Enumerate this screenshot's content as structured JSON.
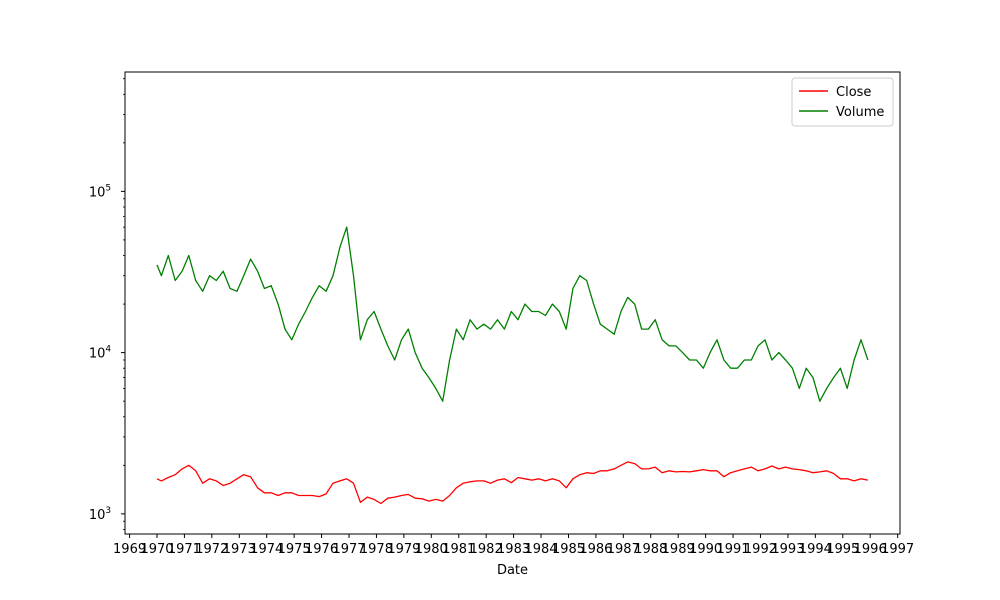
{
  "chart_data": {
    "type": "line",
    "xlabel": "Date",
    "ylabel": "",
    "y_scale": "log",
    "ylim": [
      750,
      550000
    ],
    "xlim": [
      "1968-11-01",
      "1997-02-01"
    ],
    "x_tick_labels": [
      "1969",
      "1970",
      "1971",
      "1972",
      "1973",
      "1974",
      "1975",
      "1976",
      "1977",
      "1978",
      "1979",
      "1980",
      "1981",
      "1982",
      "1983",
      "1984",
      "1985",
      "1986",
      "1987",
      "1988",
      "1989",
      "1990",
      "1991",
      "1992",
      "1993",
      "1994",
      "1995",
      "1996",
      "1997"
    ],
    "y_ticks": [
      {
        "value": 1000,
        "base": "10",
        "exp": "3"
      },
      {
        "value": 10000,
        "base": "10",
        "exp": "4"
      },
      {
        "value": 100000,
        "base": "10",
        "exp": "5"
      }
    ],
    "grid": false,
    "legend_position": "top-right",
    "series": [
      {
        "name": "Close",
        "color": "#ff0000",
        "x": [
          "1970-01-01",
          "1970-03-01",
          "1970-06-01",
          "1970-09-01",
          "1970-12-01",
          "1971-03-01",
          "1971-06-01",
          "1971-09-01",
          "1971-12-01",
          "1972-03-01",
          "1972-06-01",
          "1972-09-01",
          "1972-12-01",
          "1973-03-01",
          "1973-06-01",
          "1973-09-01",
          "1973-12-01",
          "1974-03-01",
          "1974-06-01",
          "1974-09-01",
          "1974-12-01",
          "1975-03-01",
          "1975-06-01",
          "1975-09-01",
          "1975-12-01",
          "1976-03-01",
          "1976-06-01",
          "1976-09-01",
          "1976-12-01",
          "1977-03-01",
          "1977-06-01",
          "1977-09-01",
          "1977-12-01",
          "1978-03-01",
          "1978-06-01",
          "1978-09-01",
          "1978-12-01",
          "1979-03-01",
          "1979-06-01",
          "1979-09-01",
          "1979-12-01",
          "1980-03-01",
          "1980-06-01",
          "1980-09-01",
          "1980-12-01",
          "1981-03-01",
          "1981-06-01",
          "1981-09-01",
          "1981-12-01",
          "1982-03-01",
          "1982-06-01",
          "1982-09-01",
          "1982-12-01",
          "1983-03-01",
          "1983-06-01",
          "1983-09-01",
          "1983-12-01",
          "1984-03-01",
          "1984-06-01",
          "1984-09-01",
          "1984-12-01",
          "1985-03-01",
          "1985-06-01",
          "1985-09-01",
          "1985-12-01",
          "1986-03-01",
          "1986-06-01",
          "1986-09-01",
          "1986-12-01",
          "1987-03-01",
          "1987-06-01",
          "1987-09-01",
          "1987-12-01",
          "1988-03-01",
          "1988-06-01",
          "1988-09-01",
          "1988-12-01",
          "1989-03-01",
          "1989-06-01",
          "1989-09-01",
          "1989-12-01",
          "1990-03-01",
          "1990-06-01",
          "1990-09-01",
          "1990-12-01",
          "1991-03-01",
          "1991-06-01",
          "1991-09-01",
          "1991-12-01",
          "1992-03-01",
          "1992-06-01",
          "1992-09-01",
          "1992-12-01",
          "1993-03-01",
          "1993-06-01",
          "1993-09-01",
          "1993-12-01",
          "1994-03-01",
          "1994-06-01",
          "1994-09-01",
          "1994-12-01",
          "1995-03-01",
          "1995-06-01",
          "1995-09-01",
          "1995-12-01"
        ],
        "values": [
          1650,
          1600,
          1680,
          1750,
          1900,
          2000,
          1850,
          1550,
          1650,
          1600,
          1500,
          1550,
          1650,
          1750,
          1700,
          1450,
          1350,
          1350,
          1300,
          1350,
          1350,
          1300,
          1300,
          1300,
          1280,
          1330,
          1550,
          1600,
          1650,
          1550,
          1180,
          1270,
          1230,
          1160,
          1250,
          1270,
          1300,
          1320,
          1250,
          1240,
          1200,
          1230,
          1200,
          1300,
          1450,
          1550,
          1580,
          1600,
          1600,
          1550,
          1620,
          1650,
          1560,
          1680,
          1650,
          1620,
          1650,
          1600,
          1650,
          1600,
          1450,
          1650,
          1750,
          1800,
          1780,
          1850,
          1850,
          1900,
          2000,
          2100,
          2050,
          1900,
          1900,
          1950,
          1800,
          1850,
          1820,
          1830,
          1820,
          1850,
          1880,
          1850,
          1850,
          1700,
          1800,
          1850,
          1900,
          1950,
          1850,
          1900,
          1980,
          1900,
          1950,
          1900,
          1880,
          1850,
          1800,
          1820,
          1850,
          1780,
          1650,
          1650,
          1600,
          1650,
          1620
        ]
      },
      {
        "name": "Volume",
        "color": "#008000",
        "x": [
          "1970-01-01",
          "1970-03-01",
          "1970-06-01",
          "1970-09-01",
          "1970-12-01",
          "1971-03-01",
          "1971-06-01",
          "1971-09-01",
          "1971-12-01",
          "1972-03-01",
          "1972-06-01",
          "1972-09-01",
          "1972-12-01",
          "1973-03-01",
          "1973-06-01",
          "1973-09-01",
          "1973-12-01",
          "1974-03-01",
          "1974-06-01",
          "1974-09-01",
          "1974-12-01",
          "1975-03-01",
          "1975-06-01",
          "1975-09-01",
          "1975-12-01",
          "1976-03-01",
          "1976-06-01",
          "1976-09-01",
          "1976-12-01",
          "1977-03-01",
          "1977-06-01",
          "1977-09-01",
          "1977-12-01",
          "1978-03-01",
          "1978-06-01",
          "1978-09-01",
          "1978-12-01",
          "1979-03-01",
          "1979-06-01",
          "1979-09-01",
          "1979-12-01",
          "1980-03-01",
          "1980-06-01",
          "1980-09-01",
          "1980-12-01",
          "1981-03-01",
          "1981-06-01",
          "1981-09-01",
          "1981-12-01",
          "1982-03-01",
          "1982-06-01",
          "1982-09-01",
          "1982-12-01",
          "1983-03-01",
          "1983-06-01",
          "1983-09-01",
          "1983-12-01",
          "1984-03-01",
          "1984-06-01",
          "1984-09-01",
          "1984-12-01",
          "1985-03-01",
          "1985-06-01",
          "1985-09-01",
          "1985-12-01",
          "1986-03-01",
          "1986-06-01",
          "1986-09-01",
          "1986-12-01",
          "1987-03-01",
          "1987-06-01",
          "1987-09-01",
          "1987-12-01",
          "1988-03-01",
          "1988-06-01",
          "1988-09-01",
          "1988-12-01",
          "1989-03-01",
          "1989-06-01",
          "1989-09-01",
          "1989-12-01",
          "1990-03-01",
          "1990-06-01",
          "1990-09-01",
          "1990-12-01",
          "1991-03-01",
          "1991-06-01",
          "1991-09-01",
          "1991-12-01",
          "1992-03-01",
          "1992-06-01",
          "1992-09-01",
          "1992-12-01",
          "1993-03-01",
          "1993-06-01",
          "1993-09-01",
          "1993-12-01",
          "1994-03-01",
          "1994-06-01",
          "1994-09-01",
          "1994-12-01",
          "1995-03-01",
          "1995-06-01",
          "1995-09-01",
          "1995-12-01"
        ],
        "values": [
          35000,
          30000,
          40000,
          28000,
          32000,
          40000,
          28000,
          24000,
          30000,
          28000,
          32000,
          25000,
          24000,
          30000,
          38000,
          32000,
          25000,
          26000,
          20000,
          14000,
          12000,
          15000,
          18000,
          22000,
          26000,
          24000,
          30000,
          45000,
          60000,
          30000,
          12000,
          16000,
          18000,
          14000,
          11000,
          9000,
          12000,
          14000,
          10000,
          8000,
          7000,
          6000,
          5000,
          9000,
          14000,
          12000,
          16000,
          14000,
          15000,
          14000,
          16000,
          14000,
          18000,
          16000,
          20000,
          18000,
          18000,
          17000,
          20000,
          18000,
          14000,
          25000,
          30000,
          28000,
          20000,
          15000,
          14000,
          13000,
          18000,
          22000,
          20000,
          14000,
          14000,
          16000,
          12000,
          11000,
          11000,
          10000,
          9000,
          9000,
          8000,
          10000,
          12000,
          9000,
          8000,
          8000,
          9000,
          9000,
          11000,
          12000,
          9000,
          10000,
          9000,
          8000,
          6000,
          8000,
          7000,
          5000,
          6000,
          7000,
          8000,
          6000,
          9000,
          12000,
          9000
        ]
      }
    ]
  }
}
